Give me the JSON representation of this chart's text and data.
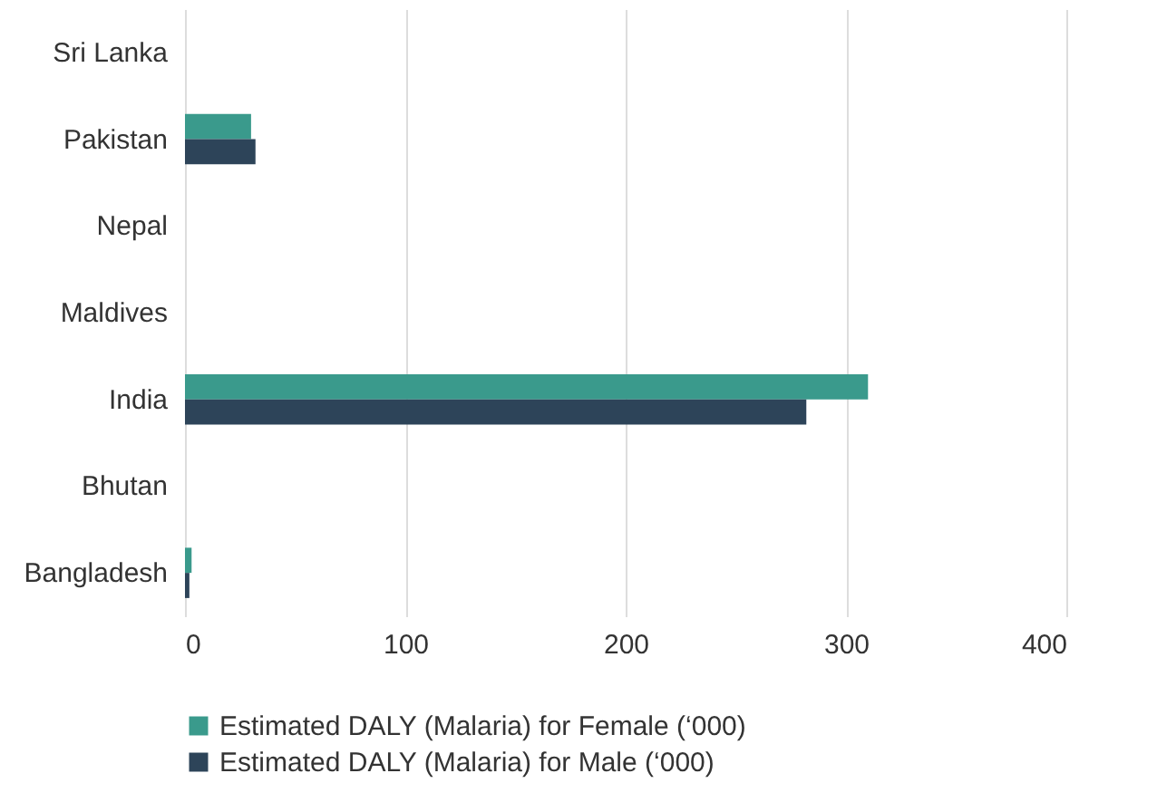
{
  "chart_data": {
    "type": "bar",
    "orientation": "horizontal",
    "categories": [
      "Sri Lanka",
      "Pakistan",
      "Nepal",
      "Maldives",
      "India",
      "Bhutan",
      "Bangladesh"
    ],
    "series": [
      {
        "name": "Estimated DALY (Malaria) for Female (‘000)",
        "color": "#3a9a8c",
        "values": [
          0,
          30,
          0,
          0,
          310,
          0,
          3
        ]
      },
      {
        "name": "Estimated DALY (Malaria) for Male (‘000)",
        "color": "#2d4459",
        "values": [
          0,
          32,
          0,
          0,
          282,
          0,
          2
        ]
      }
    ],
    "xlim": [
      0,
      400
    ],
    "xticks": [
      0,
      100,
      200,
      300,
      400
    ],
    "grid": "x",
    "legend": "bottom"
  }
}
